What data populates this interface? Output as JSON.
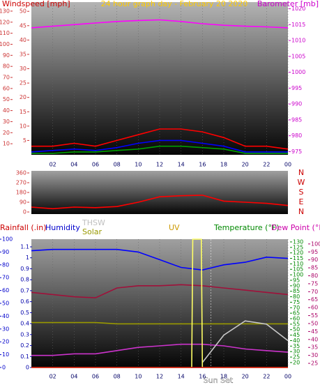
{
  "chart_data": [
    {
      "type": "line",
      "title": "24 hour graph day - February 20 2020",
      "y_label": "Windspeed [mph]",
      "y2_label": "Barometer [mb]",
      "x": [
        0,
        2,
        4,
        6,
        8,
        10,
        12,
        14,
        16,
        18,
        20,
        22,
        24
      ],
      "xlim": [
        0,
        24
      ],
      "xticks": [
        {
          "value": 2,
          "label": "02"
        },
        {
          "value": 4,
          "label": "04"
        },
        {
          "value": 6,
          "label": "06"
        },
        {
          "value": 8,
          "label": "08"
        },
        10,
        12,
        14,
        16,
        18,
        20,
        22,
        {
          "value": 24,
          "label": "00"
        }
      ],
      "ylim": [
        0,
        52
      ],
      "yticks": [
        5,
        10,
        15,
        20,
        25,
        30,
        35,
        40,
        45,
        50
      ],
      "y2lim": [
        974,
        1021
      ],
      "y2ticks": [
        975,
        980,
        985,
        990,
        995,
        1000,
        1005,
        1010,
        1015,
        1020
      ],
      "y3lim": [
        0,
        135
      ],
      "y3ticks": [
        10,
        20,
        30,
        40,
        50,
        60,
        70,
        80,
        90,
        100,
        110,
        120,
        130
      ],
      "series": [
        {
          "name": "Wind Gust",
          "color": "#ff0000",
          "values": [
            3,
            3,
            4,
            3,
            5,
            7,
            9,
            9,
            8,
            6,
            3,
            3,
            2
          ]
        },
        {
          "name": "Wind Speed",
          "color": "#0000ff",
          "values": [
            1,
            1.5,
            2,
            1.5,
            2.5,
            4,
            5,
            5,
            4,
            3,
            1,
            1,
            1
          ]
        },
        {
          "name": "Wind Average",
          "color": "#00a000",
          "values": [
            0.5,
            0.5,
            1,
            1,
            1.5,
            2,
            3,
            3,
            2.5,
            2,
            0.5,
            0.5,
            0.5
          ]
        },
        {
          "name": "Barometer",
          "color": "#ff00ff",
          "axis": "y2",
          "values": [
            1014,
            1014.5,
            1015,
            1015.5,
            1016,
            1016.3,
            1016.5,
            1016,
            1015.3,
            1014.8,
            1014.5,
            1014.3,
            1014
          ]
        }
      ]
    },
    {
      "type": "line",
      "x": [
        0,
        2,
        4,
        6,
        8,
        10,
        12,
        14,
        16,
        18,
        20,
        22,
        24
      ],
      "xlim": [
        0,
        24
      ],
      "ylim": [
        0,
        360
      ],
      "yticks": [
        0,
        90,
        180,
        270,
        360
      ],
      "compass_labels": [
        "N",
        "E",
        "S",
        "W",
        "N"
      ],
      "series": [
        {
          "name": "Wind Direction",
          "color": "#ff0000",
          "values": [
            45,
            30,
            45,
            40,
            50,
            90,
            140,
            150,
            155,
            100,
            90,
            80,
            60
          ]
        }
      ]
    },
    {
      "type": "line",
      "legend": [
        "Rainfall (.in)",
        "Humidity",
        "THSW",
        "Solar",
        "UV",
        "Temperature (°F)",
        "Dew Point (°F)"
      ],
      "annotation": "Sun Set",
      "annotation_x": 16.8,
      "x": [
        0,
        2,
        4,
        6,
        8,
        10,
        12,
        14,
        16,
        18,
        20,
        22,
        24
      ],
      "xlim": [
        0,
        24
      ],
      "xticks": [
        {
          "value": 2,
          "label": "02"
        },
        {
          "value": 4,
          "label": "04"
        },
        {
          "value": 6,
          "label": "06"
        },
        {
          "value": 8,
          "label": "08"
        },
        10,
        12,
        14,
        16,
        18,
        20,
        22,
        {
          "value": 24,
          "label": "00"
        }
      ],
      "ylim": [
        0,
        100
      ],
      "yticks": [
        0,
        10,
        20,
        30,
        40,
        50,
        60,
        70,
        80,
        90,
        100
      ],
      "y2lim": [
        15.5,
        132.5
      ],
      "y2ticks": [
        20,
        25,
        30,
        35,
        40,
        45,
        50,
        55,
        60,
        65,
        70,
        75,
        80,
        85,
        90,
        95,
        100,
        105,
        110,
        115,
        120,
        125,
        130
      ],
      "y3lim": [
        22.4,
        103
      ],
      "y3ticks": [
        25,
        30,
        35,
        40,
        45,
        50,
        55,
        60,
        65,
        70,
        75,
        80,
        85,
        90,
        95,
        100
      ],
      "y4lim": [
        0,
        1.17
      ],
      "y4ticks": [
        0,
        0.1,
        0.2,
        0.3,
        0.4,
        0.5,
        0.6,
        0.7,
        0.8,
        0.9,
        1,
        1.1
      ],
      "series": [
        {
          "name": "Humidity",
          "color": "#0000ff",
          "values": [
            91,
            92,
            92,
            92,
            92,
            90,
            84,
            78,
            76,
            80,
            82,
            86,
            85
          ]
        },
        {
          "name": "Temperature",
          "color": "#a0103a",
          "axis": "y2",
          "values": [
            84,
            82,
            80,
            79,
            88,
            90,
            90,
            91,
            90,
            88,
            86,
            84,
            82
          ]
        },
        {
          "name": "Dew Point",
          "color": "#cc33cc",
          "axis": "y3",
          "values": [
            30,
            30,
            31,
            31,
            33,
            35,
            36,
            37,
            37,
            36,
            34,
            33,
            32
          ]
        },
        {
          "name": "Solar",
          "color": "#999900",
          "values": [
            35,
            35,
            35,
            35,
            34,
            34,
            34,
            34,
            34,
            34,
            34,
            34,
            34
          ]
        },
        {
          "name": "THSW",
          "color": "#c8c8c8",
          "axis": "y2",
          "values": [
            null,
            null,
            null,
            null,
            null,
            null,
            null,
            null,
            20,
            45,
            58,
            55,
            40
          ]
        },
        {
          "name": "UV",
          "color": "#ffff66",
          "x": [
            0,
            15,
            15.1,
            15.9,
            16,
            24
          ],
          "values": [
            0,
            0,
            100,
            100,
            0,
            0
          ]
        },
        {
          "name": "Rainfall",
          "color": "#cc0000",
          "axis": "y4",
          "values": [
            0,
            0,
            0,
            0,
            0,
            0,
            0,
            0,
            0,
            0,
            0,
            0,
            0
          ]
        }
      ]
    }
  ]
}
